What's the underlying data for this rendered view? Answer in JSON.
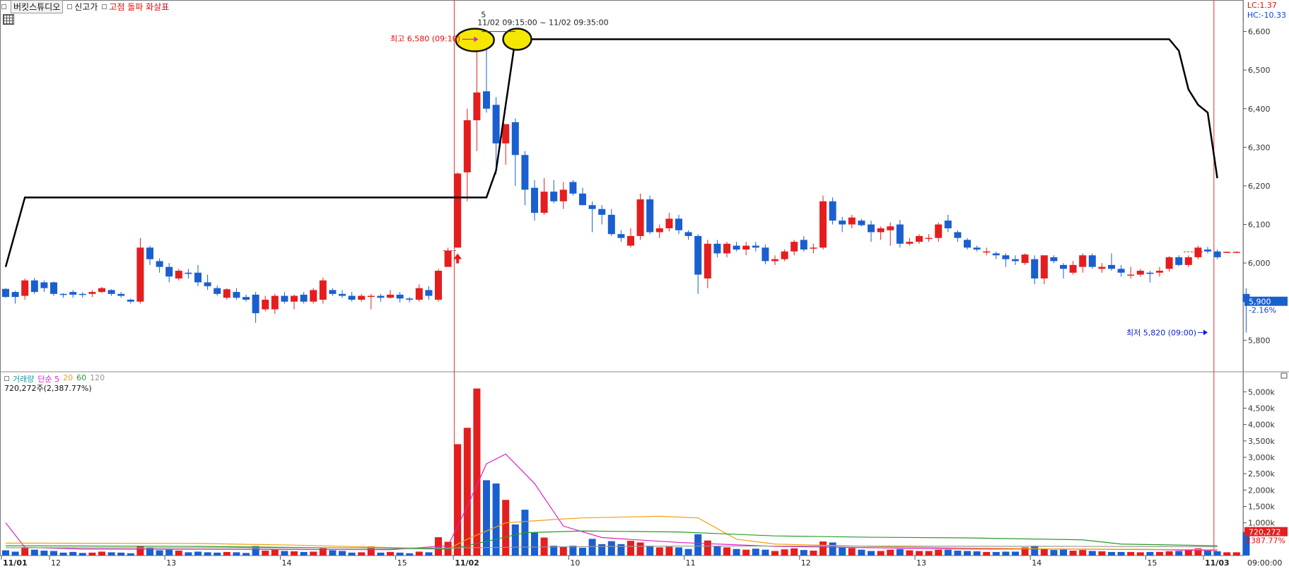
{
  "toolbar": {
    "studio_label": "버킷스튜디오",
    "new_high_label": "신고가",
    "indicator_label": "고점 돌파 화살표"
  },
  "corner": {
    "lc": "LC:1.37",
    "hc": "HC:-10.33"
  },
  "annotations": {
    "high_label": "최고 6,580 (09:10)",
    "low_label": "최저 5,820 (09:00)",
    "range_label": "11/02 09:15:00 ~ 11/02 09:35:00",
    "count_label": "5"
  },
  "price_badge": {
    "price": "5,900",
    "change": "-2.16%"
  },
  "volume_legend": {
    "vol_label": "거래량",
    "ma_label": "단순",
    "ma5": "5",
    "ma20": "20",
    "ma60": "60",
    "ma120": "120",
    "summary": "720,272주(2,387.77%)"
  },
  "volume_badge": {
    "value": "720,272",
    "pct": "2387.77%"
  },
  "time_label": "09:00:00",
  "colors": {
    "up": "#e41e1e",
    "down": "#1a5fd0",
    "line": "#000000",
    "ma5": "#e020c0",
    "ma20": "#f0a010",
    "ma60": "#2a9a2a",
    "ma120": "#999999"
  },
  "chart_data": {
    "type": "candlestick",
    "price_axis": {
      "ticks": [
        "6,600",
        "6,500",
        "6,400",
        "6,300",
        "6,200",
        "6,100",
        "6,000",
        "5,900",
        "5,800"
      ],
      "range": [
        5720,
        6645
      ]
    },
    "volume_axis": {
      "ticks": [
        "5,000k",
        "4,500k",
        "4,000k",
        "3,500k",
        "3,000k",
        "2,500k",
        "2,000k",
        "1,500k",
        "1,000k"
      ],
      "range": [
        0,
        5200
      ]
    },
    "date_labels": [
      {
        "label": "11/01",
        "bold": true,
        "i": 0
      },
      {
        "label": "12",
        "bold": false,
        "i": 5
      },
      {
        "label": "13",
        "bold": false,
        "i": 17
      },
      {
        "label": "14",
        "bold": false,
        "i": 29
      },
      {
        "label": "15",
        "bold": false,
        "i": 41
      },
      {
        "label": "11/02",
        "bold": true,
        "i": 47
      },
      {
        "label": "10",
        "bold": false,
        "i": 59
      },
      {
        "label": "11",
        "bold": false,
        "i": 71
      },
      {
        "label": "12",
        "bold": false,
        "i": 83
      },
      {
        "label": "13",
        "bold": false,
        "i": 95
      },
      {
        "label": "14",
        "bold": false,
        "i": 107
      },
      {
        "label": "15",
        "bold": false,
        "i": 119
      },
      {
        "label": "11/03",
        "bold": true,
        "i": 125
      }
    ],
    "candles": [
      [
        5933,
        5935,
        5910,
        5912,
        160
      ],
      [
        5925,
        5928,
        5895,
        5912,
        120
      ],
      [
        5915,
        5960,
        5905,
        5955,
        260
      ],
      [
        5955,
        5962,
        5920,
        5925,
        180
      ],
      [
        5950,
        5955,
        5925,
        5935,
        150
      ],
      [
        5950,
        5952,
        5915,
        5920,
        140
      ],
      [
        5920,
        5922,
        5910,
        5918,
        90
      ],
      [
        5925,
        5930,
        5910,
        5918,
        110
      ],
      [
        5920,
        5925,
        5910,
        5918,
        80
      ],
      [
        5920,
        5930,
        5912,
        5925,
        90
      ],
      [
        5925,
        5938,
        5922,
        5935,
        120
      ],
      [
        5930,
        5932,
        5915,
        5920,
        100
      ],
      [
        5920,
        5925,
        5910,
        5915,
        90
      ],
      [
        5905,
        5908,
        5895,
        5900,
        70
      ],
      [
        5900,
        6065,
        5895,
        6040,
        280
      ],
      [
        6040,
        6045,
        5995,
        6010,
        250
      ],
      [
        6005,
        6012,
        5975,
        5990,
        160
      ],
      [
        5990,
        6000,
        5950,
        5965,
        180
      ],
      [
        5960,
        5985,
        5955,
        5980,
        150
      ],
      [
        5975,
        5985,
        5960,
        5972,
        100
      ],
      [
        5975,
        5995,
        5940,
        5950,
        120
      ],
      [
        5950,
        5970,
        5930,
        5940,
        100
      ],
      [
        5935,
        5942,
        5915,
        5920,
        90
      ],
      [
        5910,
        5935,
        5905,
        5932,
        110
      ],
      [
        5925,
        5935,
        5905,
        5910,
        100
      ],
      [
        5912,
        5918,
        5900,
        5905,
        80
      ],
      [
        5918,
        5925,
        5845,
        5870,
        290
      ],
      [
        5880,
        5915,
        5875,
        5905,
        150
      ],
      [
        5880,
        5920,
        5868,
        5915,
        180
      ],
      [
        5915,
        5925,
        5895,
        5900,
        140
      ],
      [
        5900,
        5918,
        5880,
        5915,
        130
      ],
      [
        5918,
        5925,
        5895,
        5900,
        110
      ],
      [
        5900,
        5935,
        5895,
        5930,
        120
      ],
      [
        5905,
        5962,
        5895,
        5955,
        240
      ],
      [
        5930,
        5935,
        5915,
        5920,
        160
      ],
      [
        5920,
        5930,
        5910,
        5915,
        140
      ],
      [
        5915,
        5925,
        5900,
        5905,
        90
      ],
      [
        5905,
        5920,
        5900,
        5915,
        100
      ],
      [
        5915,
        5920,
        5880,
        5915,
        280
      ],
      [
        5915,
        5920,
        5900,
        5910,
        90
      ],
      [
        5910,
        5930,
        5908,
        5918,
        110
      ],
      [
        5918,
        5925,
        5898,
        5908,
        90
      ],
      [
        5908,
        5912,
        5898,
        5905,
        70
      ],
      [
        5905,
        5945,
        5900,
        5935,
        120
      ],
      [
        5930,
        5940,
        5905,
        5915,
        100
      ],
      [
        5905,
        5985,
        5900,
        5980,
        560
      ],
      [
        5990,
        6040,
        5990,
        6032,
        420
      ],
      [
        6040,
        6235,
        6040,
        6232,
        3400
      ],
      [
        6235,
        6400,
        6160,
        6370,
        3900
      ],
      [
        6370,
        6580,
        6290,
        6442,
        5100
      ],
      [
        6445,
        6580,
        6390,
        6400,
        2300
      ],
      [
        6410,
        6430,
        6230,
        6310,
        2200
      ],
      [
        6310,
        6355,
        6255,
        6360,
        1700
      ],
      [
        6365,
        6375,
        6200,
        6280,
        950
      ],
      [
        6280,
        6290,
        6150,
        6190,
        1400
      ],
      [
        6195,
        6215,
        6110,
        6130,
        700
      ],
      [
        6130,
        6220,
        6125,
        6185,
        550
      ],
      [
        6185,
        6215,
        6155,
        6160,
        300
      ],
      [
        6160,
        6210,
        6140,
        6190,
        280
      ],
      [
        6210,
        6215,
        6175,
        6180,
        300
      ],
      [
        6180,
        6195,
        6150,
        6150,
        240
      ],
      [
        6150,
        6160,
        6080,
        6140,
        510
      ],
      [
        6140,
        6150,
        6100,
        6125,
        350
      ],
      [
        6125,
        6140,
        6070,
        6075,
        440
      ],
      [
        6075,
        6085,
        6055,
        6065,
        350
      ],
      [
        6045,
        6090,
        6040,
        6070,
        450
      ],
      [
        6070,
        6180,
        6060,
        6165,
        400
      ],
      [
        6165,
        6175,
        6075,
        6080,
        300
      ],
      [
        6080,
        6100,
        6065,
        6090,
        250
      ],
      [
        6090,
        6130,
        6082,
        6115,
        270
      ],
      [
        6115,
        6125,
        6075,
        6085,
        250
      ],
      [
        6080,
        6085,
        6060,
        6070,
        200
      ],
      [
        6070,
        6075,
        5920,
        5970,
        650
      ],
      [
        5960,
        6060,
        5935,
        6050,
        460
      ],
      [
        6050,
        6060,
        6015,
        6025,
        300
      ],
      [
        6025,
        6055,
        6015,
        6050,
        250
      ],
      [
        6045,
        6055,
        6030,
        6035,
        200
      ],
      [
        6035,
        6055,
        6020,
        6045,
        180
      ],
      [
        6045,
        6055,
        6030,
        6040,
        210
      ],
      [
        6040,
        6048,
        5997,
        6005,
        180
      ],
      [
        6005,
        6020,
        5995,
        6010,
        140
      ],
      [
        6010,
        6035,
        6005,
        6030,
        190
      ],
      [
        6030,
        6060,
        6020,
        6055,
        220
      ],
      [
        6060,
        6070,
        6030,
        6035,
        170
      ],
      [
        6040,
        6050,
        6025,
        6040,
        150
      ],
      [
        6040,
        6175,
        6035,
        6160,
        430
      ],
      [
        6160,
        6170,
        6100,
        6110,
        400
      ],
      [
        6110,
        6120,
        6080,
        6100,
        240
      ],
      [
        6100,
        6125,
        6090,
        6118,
        230
      ],
      [
        6110,
        6115,
        6095,
        6098,
        180
      ],
      [
        6100,
        6110,
        6055,
        6080,
        140
      ],
      [
        6080,
        6095,
        6060,
        6090,
        140
      ],
      [
        6085,
        6105,
        6045,
        6095,
        180
      ],
      [
        6100,
        6112,
        6040,
        6050,
        200
      ],
      [
        6050,
        6065,
        6045,
        6055,
        160
      ],
      [
        6055,
        6075,
        6050,
        6070,
        140
      ],
      [
        6065,
        6075,
        6055,
        6065,
        140
      ],
      [
        6065,
        6105,
        6055,
        6100,
        180
      ],
      [
        6110,
        6125,
        6080,
        6090,
        180
      ],
      [
        6080,
        6085,
        6055,
        6065,
        150
      ],
      [
        6060,
        6065,
        6035,
        6040,
        140
      ],
      [
        6040,
        6045,
        6030,
        6035,
        130
      ],
      [
        6030,
        6040,
        6020,
        6030,
        110
      ],
      [
        6025,
        6030,
        6010,
        6020,
        110
      ],
      [
        6020,
        6025,
        5990,
        6010,
        120
      ],
      [
        6010,
        6020,
        5995,
        6005,
        120
      ],
      [
        6000,
        6025,
        5995,
        6022,
        250
      ],
      [
        6010,
        6020,
        5945,
        5960,
        300
      ],
      [
        5960,
        6020,
        5945,
        6020,
        200
      ],
      [
        6015,
        6020,
        6000,
        6005,
        170
      ],
      [
        5995,
        6000,
        5960,
        5985,
        180
      ],
      [
        5975,
        6005,
        5970,
        5995,
        150
      ],
      [
        5990,
        6025,
        5975,
        6020,
        170
      ],
      [
        6020,
        6025,
        5985,
        5990,
        140
      ],
      [
        5985,
        6000,
        5975,
        5990,
        130
      ],
      [
        5995,
        6025,
        5980,
        5985,
        110
      ],
      [
        5985,
        5995,
        5965,
        5975,
        110
      ],
      [
        5970,
        5990,
        5960,
        5970,
        110
      ],
      [
        5970,
        5985,
        5965,
        5980,
        100
      ],
      [
        5975,
        5980,
        5950,
        5972,
        110
      ],
      [
        5975,
        5990,
        5965,
        5980,
        110
      ],
      [
        5985,
        6018,
        5978,
        6015,
        130
      ],
      [
        6015,
        6020,
        5992,
        5995,
        140
      ],
      [
        5995,
        6020,
        5990,
        6015,
        180
      ],
      [
        6015,
        6045,
        6010,
        6040,
        220
      ],
      [
        6035,
        6042,
        6025,
        6030,
        150
      ],
      [
        6030,
        6035,
        6010,
        6015,
        130
      ],
      [
        6028,
        6030,
        6026,
        6029,
        100
      ],
      [
        6028,
        6030,
        6026,
        6029,
        100
      ],
      [
        5920,
        5935,
        5820,
        5900,
        720
      ]
    ],
    "new_high_line": [
      [
        0,
        5990
      ],
      [
        2,
        6170
      ],
      [
        50,
        6170
      ],
      [
        51,
        6240
      ],
      [
        53,
        6580
      ],
      [
        121,
        6580
      ],
      [
        122,
        6550
      ],
      [
        123,
        6450
      ],
      [
        124,
        6410
      ],
      [
        125,
        6390
      ],
      [
        126,
        6220
      ]
    ],
    "ma_series": [
      {
        "name": "5",
        "color": "#e020c0",
        "points": [
          [
            0,
            1000
          ],
          [
            2,
            250
          ],
          [
            8,
            200
          ],
          [
            20,
            190
          ],
          [
            40,
            180
          ],
          [
            46,
            300
          ],
          [
            48,
            1500
          ],
          [
            50,
            2800
          ],
          [
            52,
            3100
          ],
          [
            55,
            2200
          ],
          [
            58,
            900
          ],
          [
            62,
            550
          ],
          [
            70,
            400
          ],
          [
            80,
            280
          ],
          [
            90,
            240
          ],
          [
            100,
            200
          ],
          [
            110,
            200
          ],
          [
            120,
            180
          ],
          [
            126,
            150
          ]
        ]
      },
      {
        "name": "20",
        "color": "#f0a010",
        "points": [
          [
            0,
            380
          ],
          [
            20,
            370
          ],
          [
            30,
            320
          ],
          [
            46,
            200
          ],
          [
            48,
            500
          ],
          [
            52,
            1000
          ],
          [
            57,
            1100
          ],
          [
            60,
            1150
          ],
          [
            68,
            1200
          ],
          [
            72,
            1150
          ],
          [
            76,
            500
          ],
          [
            80,
            350
          ],
          [
            90,
            280
          ],
          [
            100,
            230
          ],
          [
            110,
            200
          ],
          [
            126,
            180
          ]
        ]
      },
      {
        "name": "60",
        "color": "#2a9a2a",
        "points": [
          [
            0,
            300
          ],
          [
            20,
            280
          ],
          [
            46,
            200
          ],
          [
            48,
            300
          ],
          [
            54,
            700
          ],
          [
            60,
            750
          ],
          [
            70,
            720
          ],
          [
            80,
            600
          ],
          [
            90,
            560
          ],
          [
            100,
            540
          ],
          [
            112,
            480
          ],
          [
            116,
            350
          ],
          [
            126,
            300
          ]
        ]
      },
      {
        "name": "120",
        "color": "#999999",
        "points": [
          [
            0,
            240
          ],
          [
            46,
            230
          ],
          [
            54,
            260
          ],
          [
            70,
            290
          ],
          [
            90,
            290
          ],
          [
            110,
            280
          ],
          [
            126,
            270
          ]
        ]
      }
    ]
  }
}
